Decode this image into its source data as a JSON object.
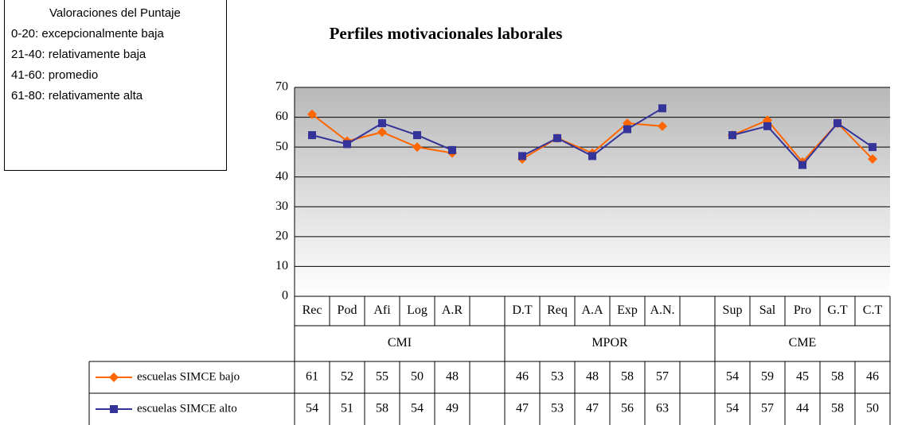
{
  "chart_data": {
    "type": "line",
    "title": "Perfiles motivacionales laborales",
    "categories": [
      "Rec",
      "Pod",
      "Afi",
      "Log",
      "A.R",
      null,
      "D.T",
      "Req",
      "A.A",
      "Exp",
      "A.N.",
      null,
      "Sup",
      "Sal",
      "Pro",
      "G.T",
      "C.T"
    ],
    "groups": [
      "CMI",
      "MPOR",
      "CME"
    ],
    "series": [
      {
        "name": "escuelas SIMCE bajo",
        "color": "#ff6600",
        "marker": "diamond",
        "values": [
          61,
          52,
          55,
          50,
          48,
          null,
          46,
          53,
          48,
          58,
          57,
          null,
          54,
          59,
          45,
          58,
          46
        ]
      },
      {
        "name": "escuelas SIMCE alto",
        "color": "#333399",
        "marker": "square",
        "values": [
          54,
          51,
          58,
          54,
          49,
          null,
          47,
          53,
          47,
          56,
          63,
          null,
          54,
          57,
          44,
          58,
          50
        ]
      }
    ],
    "ylim": [
      0,
      70
    ],
    "yticks": [
      0,
      10,
      20,
      30,
      40,
      50,
      60,
      70
    ],
    "grid": true,
    "data_table": true
  },
  "score_key": {
    "title": "Valoraciones del Puntaje",
    "items": [
      "0-20: excepcionalmente baja",
      "21-40: relativamente baja",
      "41-60: promedio",
      "61-80: relativamente alta"
    ]
  }
}
